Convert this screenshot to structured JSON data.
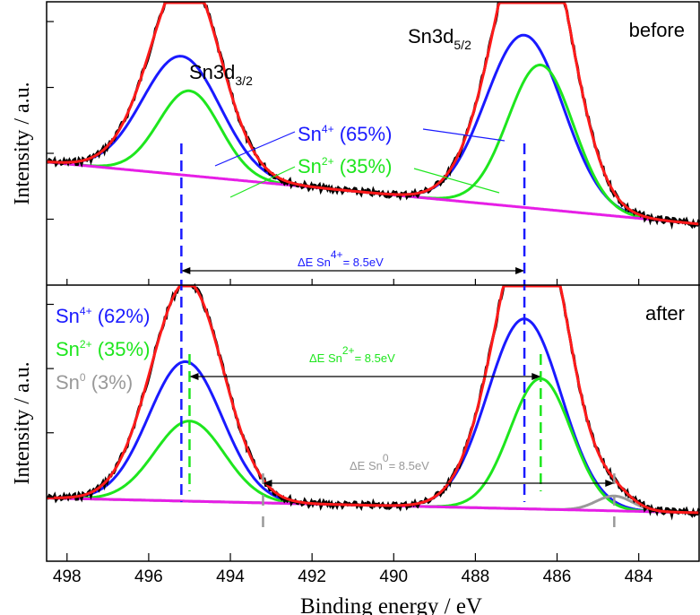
{
  "chart_data": {
    "type": "line",
    "xlabel": "Binding energy / eV",
    "xlim": [
      498.5,
      482.5
    ],
    "x_ticks": [
      "498",
      "496",
      "494",
      "492",
      "490",
      "488",
      "486",
      "484"
    ],
    "colors": {
      "raw": "#000000",
      "envelope": "#ff1a1a",
      "sn4": "#1a1aff",
      "sn2": "#1ee61e",
      "sn0": "#999999",
      "background": "#e61ee6"
    },
    "panels": [
      {
        "corner_label": "before",
        "ylabel": "Intensity / a.u.",
        "peak_labels": [
          "Sn3d",
          "Sn3d"
        ],
        "peak_subscripts": [
          "3/2",
          "5/2"
        ],
        "components": [
          {
            "species": "Sn",
            "charge": "4+",
            "percent": "(65%)",
            "color": "#1a1aff",
            "peaks": [
              {
                "center": 495.2,
                "height": 0.42,
                "width": 0.95
              },
              {
                "center": 486.8,
                "height": 0.61,
                "width": 0.95
              }
            ]
          },
          {
            "species": "Sn",
            "charge": "2+",
            "percent": "(35%)",
            "color": "#1ee61e",
            "peaks": [
              {
                "center": 495.0,
                "height": 0.3,
                "width": 0.75
              },
              {
                "center": 486.4,
                "height": 0.51,
                "width": 0.8
              }
            ]
          }
        ],
        "background_line": {
          "start": 0.22,
          "end": 0.0
        },
        "delta_labels": [
          {
            "prefix": "ΔE Sn",
            "charge": "4+",
            "value": "= 8.5eV",
            "color": "#1a1aff",
            "from": 495.2,
            "to": 486.8
          }
        ]
      },
      {
        "corner_label": "after",
        "ylabel": "Intensity / a.u.",
        "components": [
          {
            "species": "Sn",
            "charge": "4+",
            "percent": "(62%)",
            "color": "#1a1aff",
            "peaks": [
              {
                "center": 495.1,
                "height": 0.47,
                "width": 0.9
              },
              {
                "center": 486.8,
                "height": 0.64,
                "width": 0.9
              }
            ]
          },
          {
            "species": "Sn",
            "charge": "2+",
            "percent": "(35%)",
            "color": "#1ee61e",
            "peaks": [
              {
                "center": 495.0,
                "height": 0.27,
                "width": 0.85
              },
              {
                "center": 486.4,
                "height": 0.44,
                "width": 0.75
              }
            ]
          },
          {
            "species": "Sn",
            "charge": "0",
            "percent": "(3%)",
            "color": "#999999",
            "peaks": [
              {
                "center": 484.6,
                "height": 0.05,
                "width": 0.45
              }
            ]
          }
        ],
        "background_line": {
          "start": 0.05,
          "end": 0.0
        },
        "delta_labels": [
          {
            "prefix": "ΔE Sn",
            "charge": "2+",
            "value": "= 8.5eV",
            "color": "#1ee61e",
            "from": 495.0,
            "to": 486.4
          },
          {
            "prefix": "ΔE Sn",
            "charge": "0",
            "value": "= 8.5eV",
            "color": "#999999",
            "from": 493.2,
            "to": 484.6
          }
        ]
      }
    ]
  }
}
